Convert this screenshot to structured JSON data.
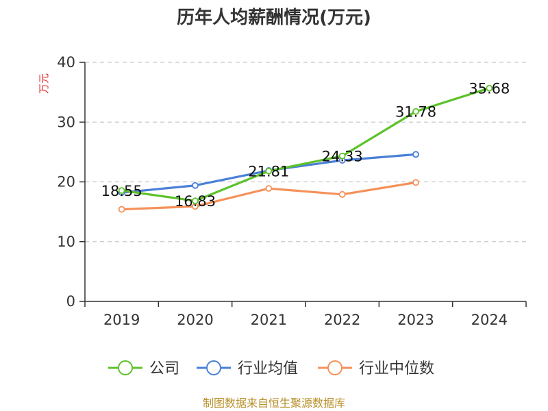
{
  "chart_data": {
    "type": "line",
    "title": "历年人均薪酬情况(万元)",
    "ylabel": "万元",
    "xlabel": "",
    "categories": [
      "2019",
      "2020",
      "2021",
      "2022",
      "2023",
      "2024"
    ],
    "ylim": [
      0,
      40
    ],
    "yticks": [
      0,
      10,
      20,
      30,
      40
    ],
    "grid": true,
    "legend_position": "bottom",
    "series": [
      {
        "name": "公司",
        "color": "#5cc22b",
        "values": [
          18.55,
          16.83,
          21.81,
          24.33,
          31.78,
          35.68
        ],
        "labels": [
          "18.55",
          "16.83",
          "21.81",
          "24.33",
          "31.78",
          "35.68"
        ]
      },
      {
        "name": "行业均值",
        "color": "#4a7fd8",
        "values": [
          18.2,
          19.4,
          21.9,
          23.6,
          24.6,
          null
        ],
        "labels": null
      },
      {
        "name": "行业中位数",
        "color": "#f5915a",
        "values": [
          15.4,
          15.9,
          18.9,
          17.9,
          19.9,
          null
        ],
        "labels": null
      }
    ],
    "source": "制图数据来自恒生聚源数据库"
  }
}
